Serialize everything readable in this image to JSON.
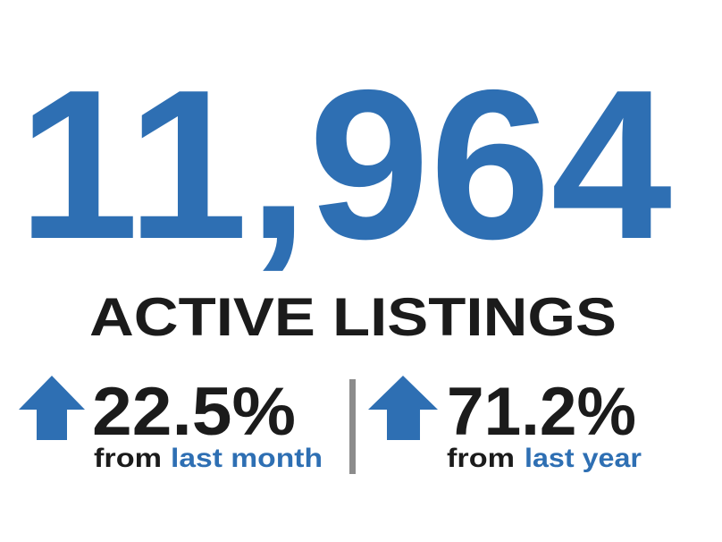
{
  "headline": {
    "value": "11,964",
    "label": "ACTIVE LISTINGS"
  },
  "changes": [
    {
      "value": "22.5%",
      "prefix": "from",
      "period": "last month"
    },
    {
      "value": "71.2%",
      "prefix": "from",
      "period": "last year"
    }
  ]
}
